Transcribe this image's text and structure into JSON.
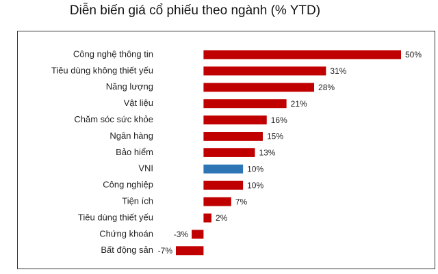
{
  "chart_data": {
    "type": "bar",
    "orientation": "horizontal",
    "title": "Diễn biến giá cổ phiếu theo ngành (% YTD)",
    "categories": [
      "Công nghệ thông tin",
      "Tiêu dùng không thiết yếu",
      "Năng lượng",
      "Vật liệu",
      "Chăm sóc sức khỏe",
      "Ngân hàng",
      "Bảo hiểm",
      "VNI",
      "Công nghiệp",
      "Tiện ích",
      "Tiêu dùng thiết yếu",
      "Chứng khoán",
      "Bất động sản"
    ],
    "values": [
      50,
      31,
      28,
      21,
      16,
      15,
      13,
      10,
      10,
      7,
      2,
      -3,
      -7
    ],
    "value_labels": [
      "50%",
      "31%",
      "28%",
      "21%",
      "16%",
      "15%",
      "13%",
      "10%",
      "10%",
      "7%",
      "2%",
      "-3%",
      "-7%"
    ],
    "colors": [
      "#c00000",
      "#c00000",
      "#c00000",
      "#c00000",
      "#c00000",
      "#c00000",
      "#c00000",
      "#2e75b6",
      "#c00000",
      "#c00000",
      "#c00000",
      "#c00000",
      "#c00000"
    ]
  }
}
